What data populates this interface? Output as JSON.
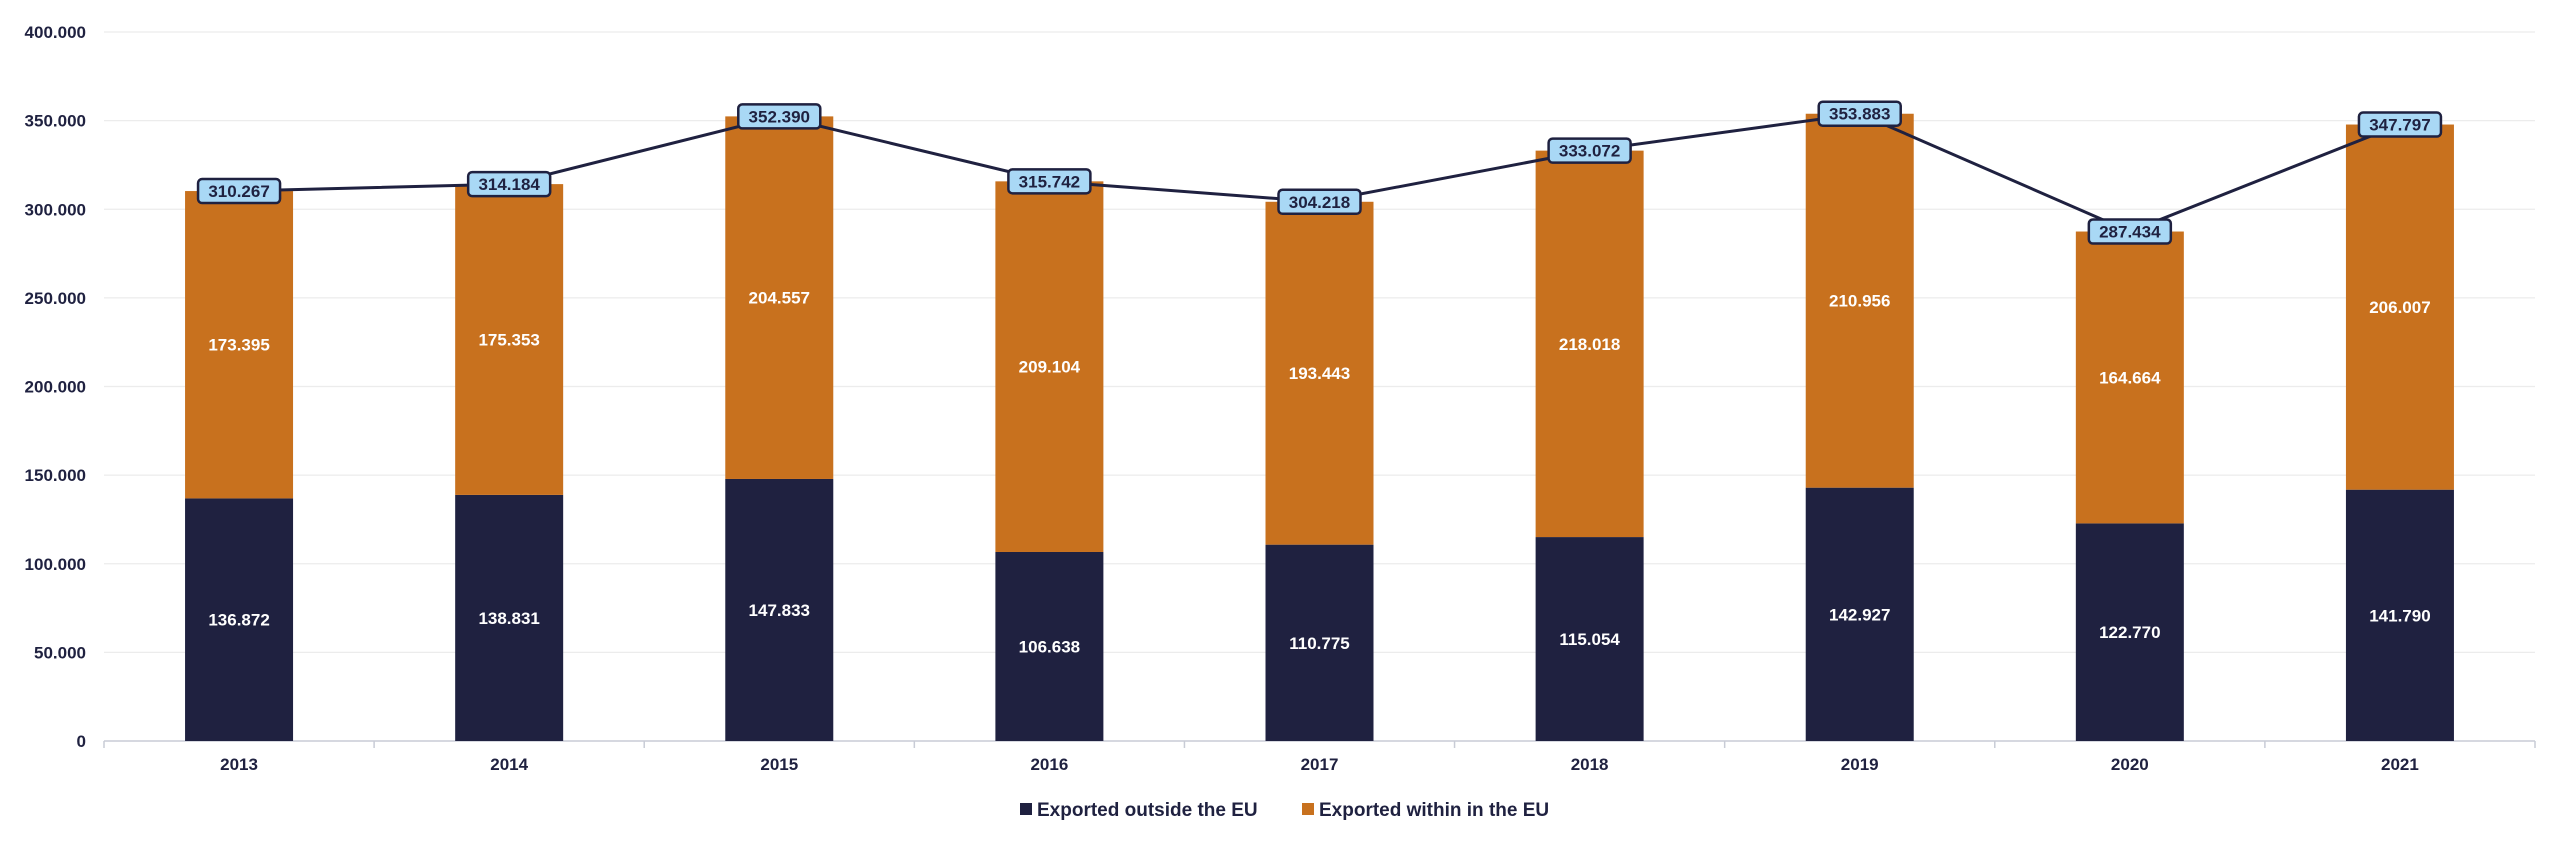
{
  "chart_data": {
    "type": "bar",
    "stacked": true,
    "title": "",
    "xlabel": "",
    "ylabel": "",
    "categories": [
      "2013",
      "2014",
      "2015",
      "2016",
      "2017",
      "2018",
      "2019",
      "2020",
      "2021"
    ],
    "series": [
      {
        "name": "Exported outside the EU",
        "color": "#1f2140",
        "values": [
          136872,
          138831,
          147833,
          106638,
          110775,
          115054,
          142927,
          122770,
          141790
        ],
        "labels": [
          "136.872",
          "138.831",
          "147.833",
          "106.638",
          "110.775",
          "115.054",
          "142.927",
          "122.770",
          "141.790"
        ]
      },
      {
        "name": "Exported within in the EU",
        "color": "#c8711e",
        "values": [
          173395,
          175353,
          204557,
          209104,
          193443,
          218018,
          210956,
          164664,
          206007
        ],
        "labels": [
          "173.395",
          "175.353",
          "204.557",
          "209.104",
          "193.443",
          "218.018",
          "210.956",
          "164.664",
          "206.007"
        ]
      }
    ],
    "total_line": {
      "color": "#1f2140",
      "label_fill": "#a9d8f5",
      "values": [
        310267,
        314184,
        352390,
        315742,
        304218,
        333072,
        353883,
        287434,
        347797
      ],
      "labels": [
        "310.267",
        "314.184",
        "352.390",
        "315.742",
        "304.218",
        "333.072",
        "353.883",
        "287.434",
        "347.797"
      ]
    },
    "ylim": [
      0,
      400000
    ],
    "yticks": [
      0,
      50000,
      100000,
      150000,
      200000,
      250000,
      300000,
      350000,
      400000
    ],
    "ytick_labels": [
      "0",
      "50.000",
      "100.000",
      "150.000",
      "200.000",
      "250.000",
      "300.000",
      "350.000",
      "400.000"
    ],
    "grid": true,
    "legend": {
      "position": "bottom-center",
      "entries": [
        "Exported outside the EU",
        "Exported within in the EU"
      ]
    }
  }
}
